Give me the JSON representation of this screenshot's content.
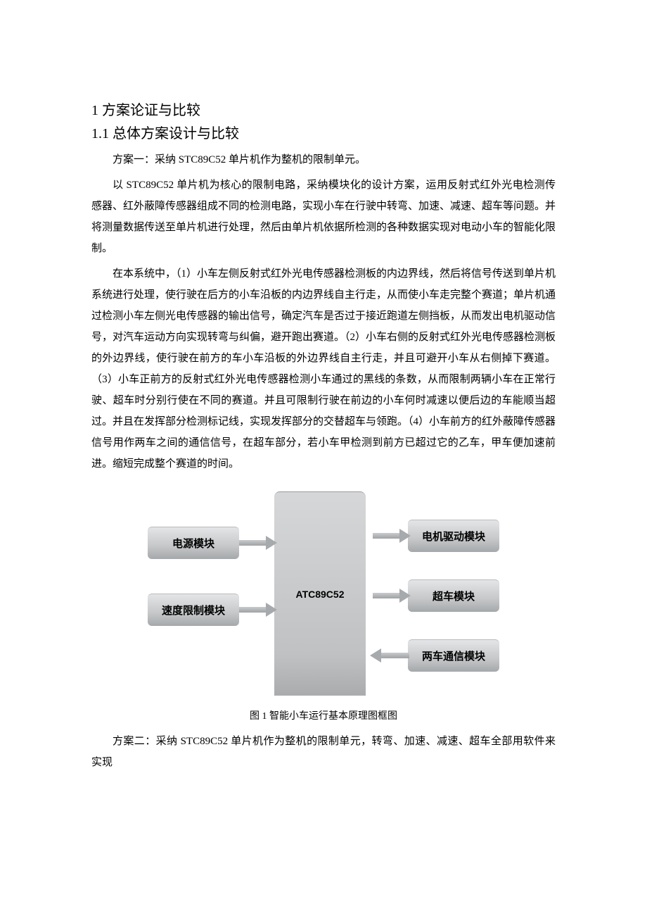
{
  "headings": {
    "h1": "1 方案论证与比较",
    "h2": "1.1 总体方案设计与比较"
  },
  "paragraphs": {
    "p1": "方案一：采纳 STC89C52 单片机作为整机的限制单元。",
    "p2": "以 STC89C52 单片机为核心的限制电路，采纳模块化的设计方案，运用反射式红外光电检测传感器、红外蔽障传感器组成不同的检测电路，实现小车在行驶中转弯、加速、减速、超车等问题。并将测量数据传送至单片机进行处理，然后由单片机依据所检测的各种数据实现对电动小车的智能化限制。",
    "p3": "在本系统中，（1）小车左侧反射式红外光电传感器检测板的内边界线，然后将信号传送到单片机系统进行处理，使行驶在后方的小车沿板的内边界线自主行走，从而使小车走完整个赛道；单片机通过检测小车左侧光电传感器的输出信号，确定汽车是否过于接近跑道左侧挡板，从而发出电机驱动信号，对汽车运动方向实现转弯与纠偏，避开跑出赛道。（2）小车右侧的反射式红外光电传感器检测板的外边界线，使行驶在前方的车小车沿板的外边界线自主行走，并且可避开小车从右侧掉下赛道。（3）小车正前方的反射式红外光电传感器检测小车通过的黑线的条数，从而限制两辆小车在正常行驶、超车时分别行使在不同的赛道。并且可限制行驶在前边的小车何时减速以便后边的车能顺当超过。并且在发挥部分检测标记线，实现发挥部分的交替超车与领跑。（4）小车前方的红外蔽障传感器信号用作两车之间的通信信号，在超车部分，若小车甲检测到前方已超过它的乙车，甲车便加速前进。缩短完成整个赛道的时间。",
    "p4": "方案二：采纳 STC89C52 单片机作为整机的限制单元，转弯、加速、减速、超车全部用软件来实现"
  },
  "diagram": {
    "center": "ATC89C52",
    "left": [
      "电源模块",
      "速度限制模块"
    ],
    "right": [
      "电机驱动模块",
      "超车模块",
      "两车通信模块"
    ],
    "caption": "图 1 智能小车运行基本原理图框图",
    "colors": {
      "block_bg_top": "#e4e5e6",
      "block_bg_bottom": "#a5a8aa",
      "center_bg_top": "#d6d7d8",
      "center_bg_bottom": "#a9abad",
      "arrow": "#a7aaac",
      "text": "#000000"
    }
  }
}
